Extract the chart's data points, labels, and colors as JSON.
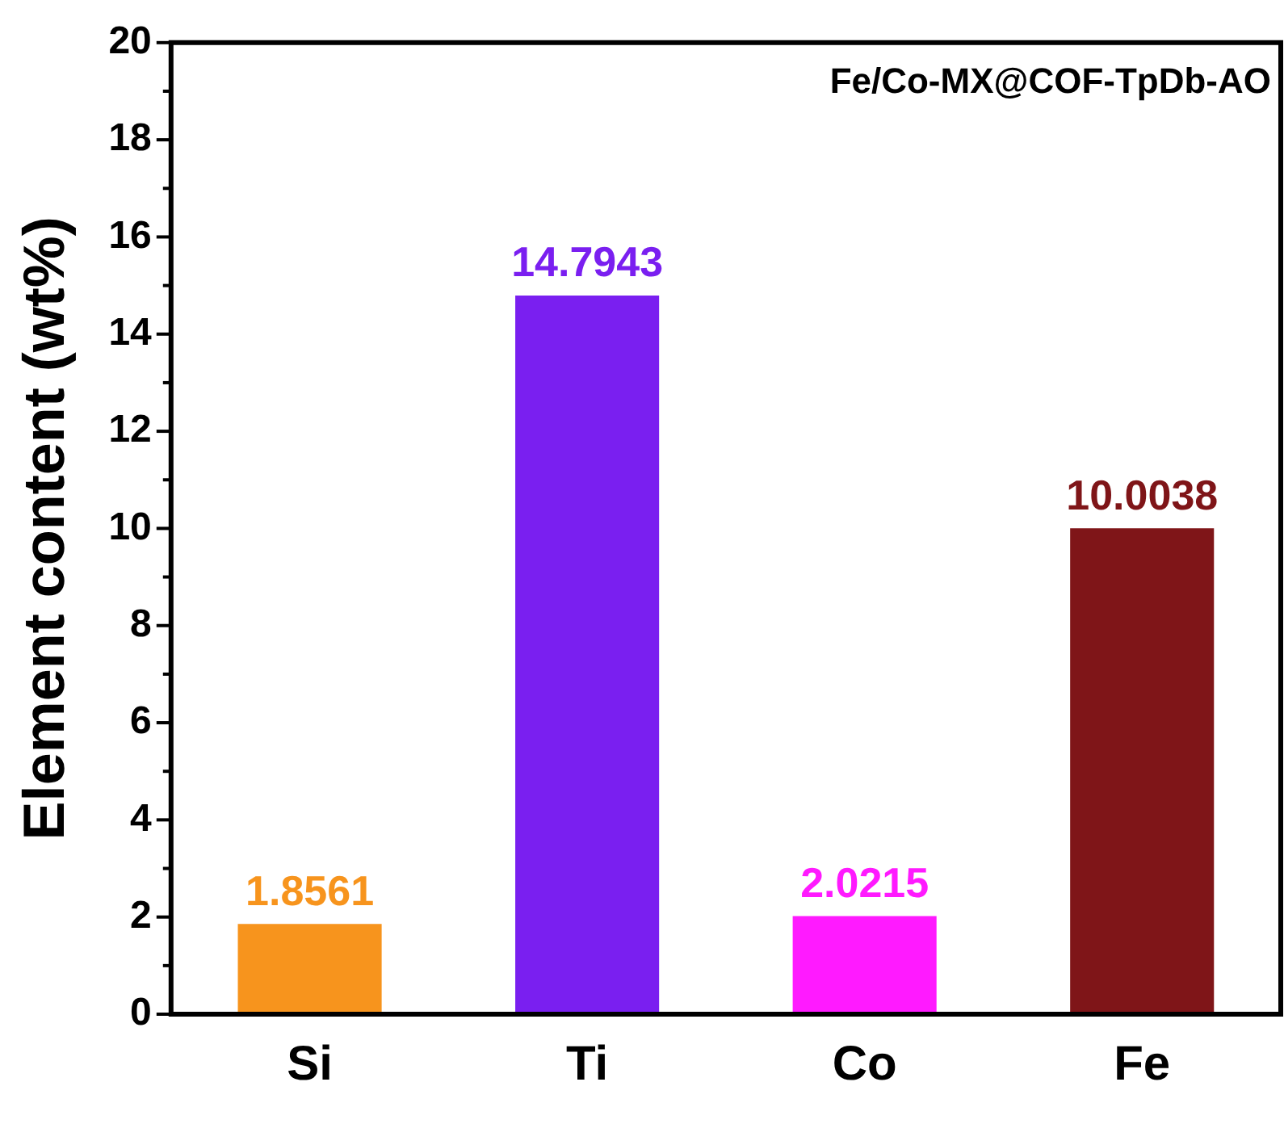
{
  "chart_data": {
    "type": "bar",
    "ylabel": "Element content (wt%)",
    "categories": [
      "Si",
      "Ti",
      "Co",
      "Fe"
    ],
    "values": [
      1.8561,
      14.7943,
      2.0215,
      10.0038
    ],
    "colors": [
      "#f7941d",
      "#7a1ff0",
      "#ff1aff",
      "#7f1518"
    ],
    "data_labels": true,
    "annotations": [
      "Fe/Co-MX@COF-TpDb-AO"
    ],
    "ylim": [
      0,
      20
    ],
    "yticks": [
      0,
      {
        "value": 1,
        "label": null
      },
      2,
      {
        "value": 3,
        "label": null
      },
      4,
      {
        "value": 5,
        "label": null
      },
      6,
      {
        "value": 7,
        "label": null
      },
      8,
      {
        "value": 9,
        "label": null
      },
      10,
      {
        "value": 11,
        "label": null
      },
      12,
      {
        "value": 13,
        "label": null
      },
      14,
      {
        "value": 15,
        "label": null
      },
      16,
      {
        "value": 17,
        "label": null
      },
      18,
      {
        "value": 19,
        "label": null
      },
      20
    ],
    "grid": false,
    "legend": false
  }
}
